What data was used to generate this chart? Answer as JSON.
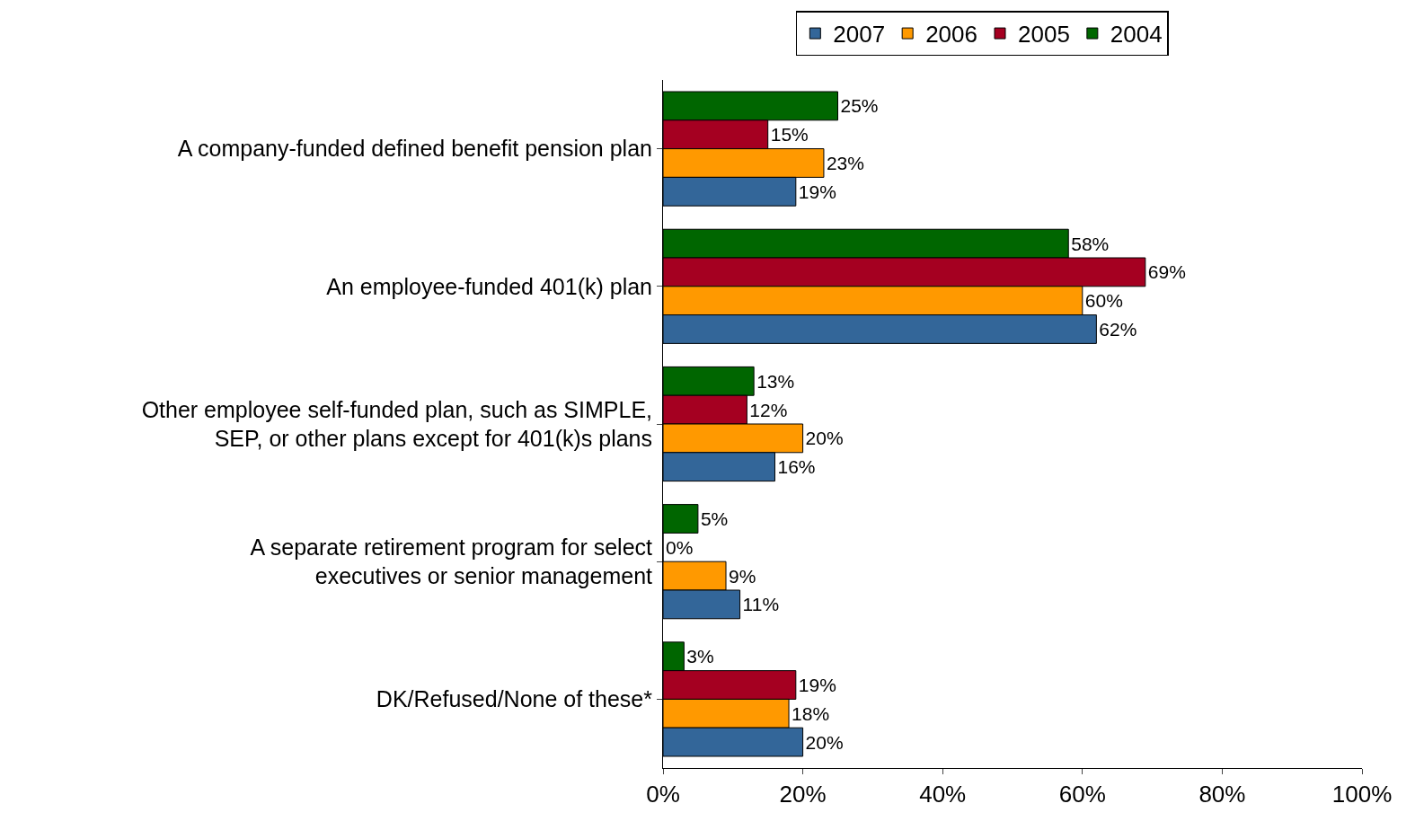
{
  "chart_data": {
    "type": "bar",
    "orientation": "horizontal",
    "categories": [
      "A company-funded defined benefit pension plan",
      "An employee-funded 401(k) plan",
      "Other employee self-funded plan, such as SIMPLE,\nSEP, or other plans except for 401(k)s plans",
      "A separate retirement program for select\nexecutives or senior management",
      "DK/Refused/None of these*"
    ],
    "series": [
      {
        "name": "2007",
        "color": "#336699",
        "values": [
          19,
          62,
          16,
          11,
          20
        ],
        "value_labels": [
          "19%",
          "62%",
          "16%",
          "11%",
          "20%"
        ]
      },
      {
        "name": "2006",
        "color": "#ff9900",
        "values": [
          23,
          60,
          20,
          9,
          18
        ],
        "value_labels": [
          "23%",
          "60%",
          "20%",
          "9%",
          "18%"
        ]
      },
      {
        "name": "2005",
        "color": "#a50021",
        "values": [
          15,
          69,
          12,
          0,
          19
        ],
        "value_labels": [
          "15%",
          "69%",
          "12%",
          "0%",
          "19%"
        ]
      },
      {
        "name": "2004",
        "color": "#006600",
        "values": [
          25,
          58,
          13,
          5,
          3
        ],
        "value_labels": [
          "25%",
          "58%",
          "13%",
          "5%",
          "3%"
        ]
      }
    ],
    "xlim": [
      0,
      100
    ],
    "xticks": [
      {
        "value": 0,
        "label": "0%"
      },
      {
        "value": 20,
        "label": "20%"
      },
      {
        "value": 40,
        "label": "40%"
      },
      {
        "value": 60,
        "label": "60%"
      },
      {
        "value": 80,
        "label": "80%"
      },
      {
        "value": 100,
        "label": "100%"
      }
    ],
    "grid": false,
    "legend": "top"
  }
}
